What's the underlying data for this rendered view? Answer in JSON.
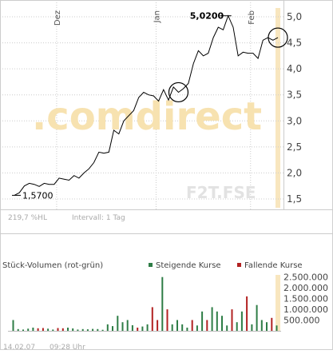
{
  "price_panel": {
    "watermark": ".comdirect",
    "symbol": "F2T.FSE",
    "change_text": "219,7 %HL",
    "interval_text": "Intervall: 1 Tag",
    "start_label": "1,5700",
    "high_label": "5,0200"
  },
  "volume_panel": {
    "title": "Stück-Volumen (rot-grün)",
    "legend_up": "Steigende Kurse",
    "legend_down": "Fallende Kurse"
  },
  "footer": {
    "date": "14.02.07",
    "time": "09:28 Uhr"
  },
  "colors": {
    "up": "#2e7d46",
    "down": "#b22222",
    "line": "#000000",
    "highlight": "#f6deaa",
    "grid": "#cccccc"
  },
  "chart_data": [
    {
      "type": "line",
      "title": "",
      "ylim": [
        1.3,
        5.2
      ],
      "y_ticks": [
        "1,5",
        "2,0",
        "2,5",
        "3,0",
        "3,5",
        "4,0",
        "4,5",
        "5,0"
      ],
      "y_tick_values": [
        1.5,
        2.0,
        2.5,
        3.0,
        3.5,
        4.0,
        4.5,
        5.0
      ],
      "x_ticks": [
        "Dez",
        "Jan",
        "Feb"
      ],
      "x_tick_index": [
        8.5,
        28.5,
        47.5
      ],
      "series": [
        {
          "values": [
            1.57,
            1.62,
            1.75,
            1.8,
            1.78,
            1.74,
            1.8,
            1.78,
            1.78,
            1.9,
            1.88,
            1.86,
            1.95,
            1.9,
            2.0,
            2.08,
            2.2,
            2.4,
            2.38,
            2.4,
            2.82,
            2.75,
            3.0,
            3.1,
            3.2,
            3.45,
            3.55,
            3.5,
            3.48,
            3.38,
            3.6,
            3.4,
            3.65,
            3.55,
            3.62,
            3.72,
            4.1,
            4.35,
            4.25,
            4.3,
            4.6,
            4.8,
            4.75,
            5.02,
            4.8,
            4.25,
            4.32,
            4.3,
            4.3,
            4.2,
            4.55,
            4.6,
            4.55,
            4.6
          ]
        }
      ],
      "annotations": [
        "1,5700",
        "5,0200"
      ]
    },
    {
      "type": "bar",
      "title": "Stück-Volumen (rot-grün)",
      "ylim": [
        0,
        2600000
      ],
      "y_ticks": [
        "500.000",
        "1.000.000",
        "1.500.000",
        "2.000.000",
        "2.500.000"
      ],
      "y_tick_values": [
        500000,
        1000000,
        1500000,
        2000000,
        2500000
      ],
      "series": [
        {
          "name": "Steigende Kurse",
          "values": [
            1,
            1,
            1,
            1,
            1,
            1,
            1,
            1,
            1,
            1,
            1,
            1,
            1,
            1,
            1,
            1,
            1,
            1,
            1,
            1,
            1,
            1,
            1,
            1,
            1,
            1,
            1,
            1,
            1,
            1,
            1,
            1,
            1,
            1,
            1,
            1,
            1,
            1,
            1,
            1,
            1,
            1,
            1,
            1,
            1,
            1,
            1,
            1,
            1,
            1,
            1,
            1,
            1,
            1
          ]
        },
        {
          "name": "Fallende Kurse",
          "values": [
            0,
            0,
            0,
            0,
            0,
            0,
            0,
            0,
            0,
            0,
            0,
            0,
            0,
            0,
            0,
            0,
            0,
            0,
            0,
            0,
            0,
            0,
            0,
            0,
            0,
            0,
            0,
            0,
            0,
            0,
            0,
            0,
            0,
            0,
            0,
            0,
            0,
            0,
            0,
            0,
            0,
            0,
            0,
            0,
            0,
            0,
            0,
            0,
            0,
            0,
            0,
            0,
            0,
            0
          ]
        }
      ],
      "volumes": [
        500000,
        80000,
        60000,
        100000,
        150000,
        120000,
        130000,
        100000,
        60000,
        130000,
        120000,
        150000,
        110000,
        60000,
        80000,
        70000,
        90000,
        80000,
        50000,
        300000,
        220000,
        700000,
        400000,
        500000,
        260000,
        150000,
        200000,
        300000,
        1100000,
        500000,
        2500000,
        1000000,
        300000,
        500000,
        300000,
        150000,
        500000,
        250000,
        900000,
        500000,
        1100000,
        900000,
        700000,
        250000,
        1000000,
        400000,
        900000,
        1600000,
        300000,
        1200000,
        500000,
        400000,
        600000,
        250000
      ],
      "directions": [
        "up",
        "up",
        "up",
        "up",
        "up",
        "down",
        "down",
        "up",
        "up",
        "down",
        "down",
        "up",
        "up",
        "up",
        "up",
        "up",
        "up",
        "up",
        "up",
        "up",
        "up",
        "up",
        "up",
        "up",
        "up",
        "down",
        "up",
        "up",
        "down",
        "down",
        "up",
        "down",
        "up",
        "up",
        "up",
        "up",
        "down",
        "up",
        "up",
        "down",
        "up",
        "up",
        "up",
        "up",
        "down",
        "up",
        "up",
        "down",
        "up",
        "up",
        "up",
        "up",
        "down",
        "up"
      ]
    }
  ]
}
